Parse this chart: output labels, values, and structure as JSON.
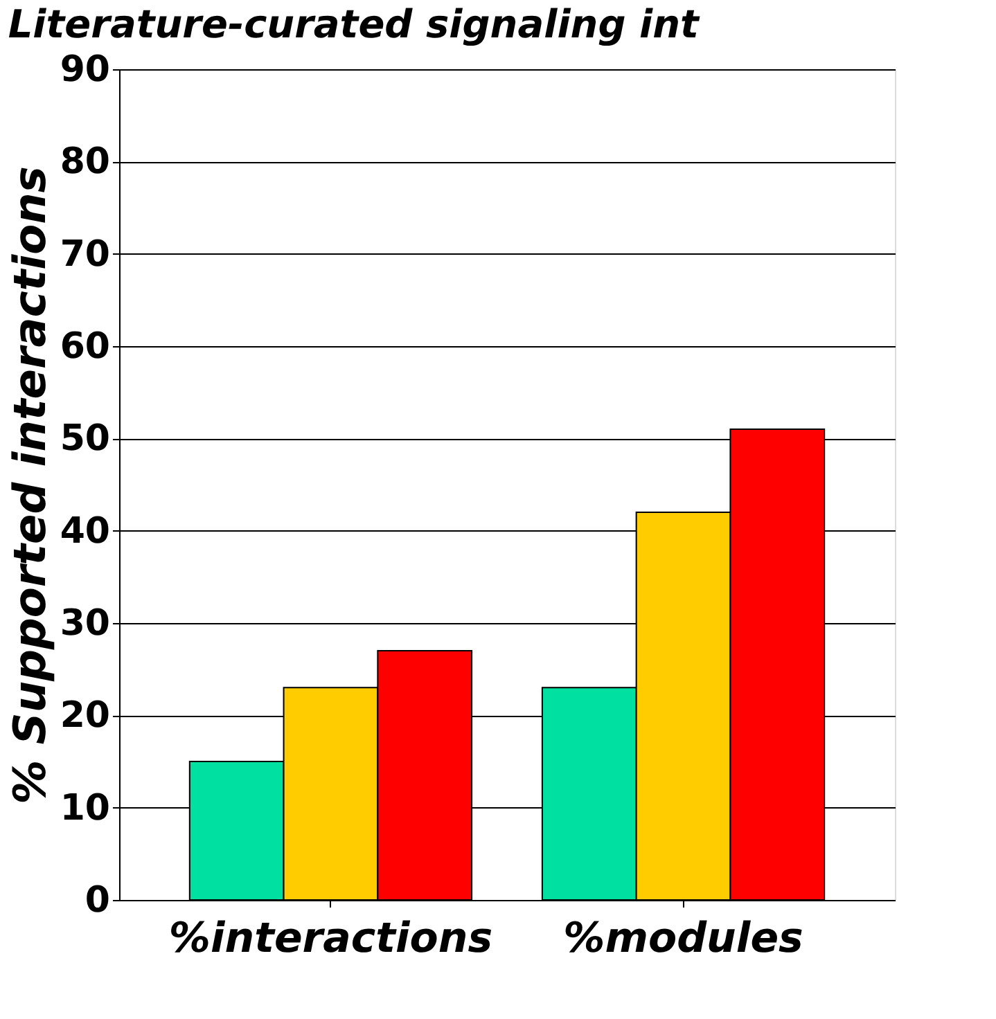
{
  "chart_data": {
    "type": "bar",
    "title": "Literature-curated signaling int",
    "ylabel": "% Supported interactions",
    "categories": [
      "%interactions",
      "%modules"
    ],
    "series": [
      {
        "color": "#00e0a0",
        "values": [
          15,
          23
        ]
      },
      {
        "color": "#ffcc00",
        "values": [
          23,
          42
        ]
      },
      {
        "color": "#ff0000",
        "values": [
          27,
          51
        ]
      }
    ],
    "ylim": [
      0,
      90
    ],
    "yticks": [
      0,
      10,
      20,
      30,
      40,
      50,
      60,
      70,
      80,
      90
    ],
    "grid": "y",
    "legend": false
  }
}
